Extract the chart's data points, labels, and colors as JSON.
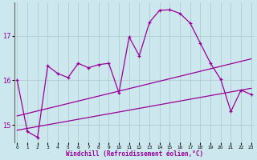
{
  "xlabel": "Windchill (Refroidissement éolien,°C)",
  "x": [
    0,
    1,
    2,
    3,
    4,
    5,
    6,
    7,
    8,
    9,
    10,
    11,
    12,
    13,
    14,
    15,
    16,
    17,
    18,
    19,
    20,
    21,
    22,
    23
  ],
  "line1": [
    16.0,
    14.85,
    14.72,
    16.32,
    16.15,
    16.06,
    16.38,
    16.28,
    16.35,
    16.38,
    15.72,
    16.97,
    16.55,
    17.3,
    17.57,
    17.58,
    17.5,
    17.28,
    16.83,
    16.38,
    16.02,
    15.3,
    15.78,
    15.68
  ],
  "trend1_x0": 0,
  "trend1_y0": 14.88,
  "trend1_x1": 23,
  "trend1_y1": 15.82,
  "trend2_x0": 0,
  "trend2_y0": 15.2,
  "trend2_x1": 23,
  "trend2_y1": 16.48,
  "color": "#990099",
  "bg_color": "#cce8ee",
  "grid_color": "#b0cccc",
  "ylim": [
    14.6,
    17.75
  ],
  "yticks": [
    15,
    16,
    17
  ],
  "xlim": [
    -0.3,
    23.3
  ]
}
